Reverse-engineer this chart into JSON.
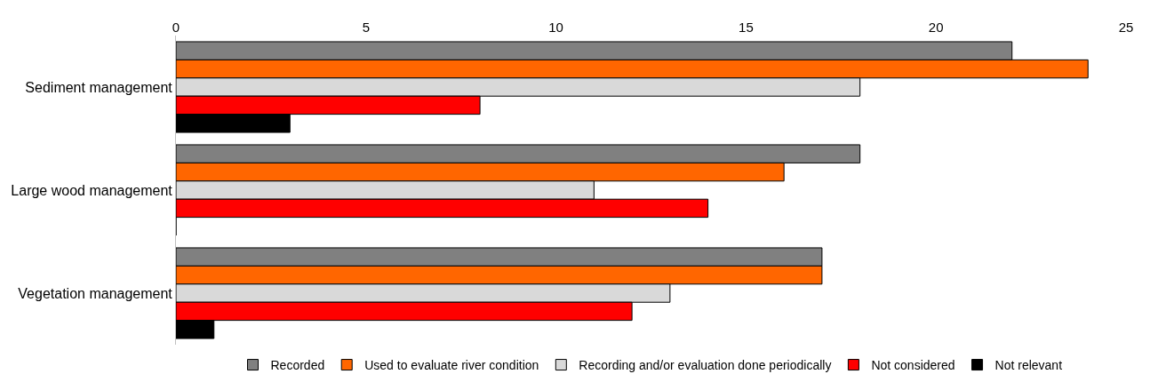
{
  "chart_data": {
    "type": "bar",
    "orientation": "horizontal",
    "categories": [
      "Sediment management",
      "Large wood management",
      "Vegetation management"
    ],
    "series": [
      {
        "name": "Recorded",
        "color": "#808080",
        "values": [
          22,
          18,
          17
        ]
      },
      {
        "name": "Used to evaluate river condition",
        "color": "#ff6600",
        "values": [
          24,
          16,
          17
        ]
      },
      {
        "name": "Recording and/or evaluation done periodically",
        "color": "#d9d9d9",
        "values": [
          18,
          11,
          13
        ]
      },
      {
        "name": "Not considered",
        "color": "#ff0000",
        "values": [
          8,
          14,
          12
        ]
      },
      {
        "name": "Not relevant",
        "color": "#000000",
        "values": [
          3,
          0,
          1
        ]
      }
    ],
    "xlim": [
      0,
      25
    ],
    "xticks": [
      0,
      5,
      10,
      15,
      20,
      25
    ],
    "legend": "bottom"
  }
}
